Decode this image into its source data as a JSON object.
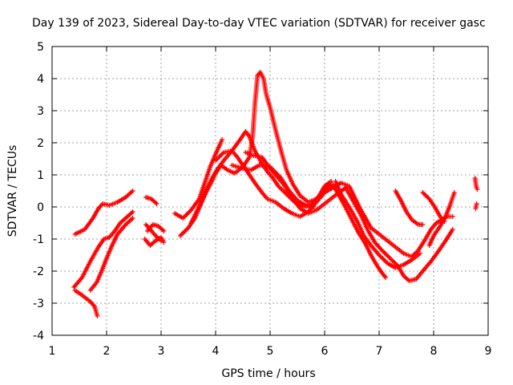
{
  "chart_data": {
    "type": "scatter",
    "title": "Day 139 of 2023, Sidereal Day-to-day VTEC variation (SDTVAR) for receiver gasc",
    "xlabel": "GPS time / hours",
    "ylabel": "SDTVAR / TECUs",
    "xlim": [
      1,
      9
    ],
    "ylim": [
      -4,
      5
    ],
    "xticks": [
      1,
      2,
      3,
      4,
      5,
      6,
      7,
      8,
      9
    ],
    "yticks": [
      -4,
      -3,
      -2,
      -1,
      0,
      1,
      2,
      3,
      4,
      5
    ],
    "grid": true,
    "marker": "+",
    "color": "#ff0000",
    "series": [
      {
        "tracks": [
          [
            [
              1.42,
              -0.85
            ],
            [
              1.6,
              -0.7
            ],
            [
              1.75,
              -0.35
            ],
            [
              1.85,
              -0.05
            ],
            [
              1.93,
              0.1
            ],
            [
              2.05,
              0.05
            ],
            [
              2.2,
              0.15
            ],
            [
              2.35,
              0.3
            ],
            [
              2.48,
              0.5
            ]
          ],
          [
            [
              1.42,
              -2.6
            ],
            [
              1.55,
              -2.75
            ],
            [
              1.7,
              -2.95
            ],
            [
              1.78,
              -3.1
            ],
            [
              1.83,
              -3.4
            ]
          ],
          [
            [
              1.4,
              -2.5
            ],
            [
              1.55,
              -2.2
            ],
            [
              1.7,
              -1.7
            ],
            [
              1.85,
              -1.25
            ],
            [
              1.95,
              -1.0
            ],
            [
              2.05,
              -0.95
            ],
            [
              2.15,
              -0.75
            ],
            [
              2.25,
              -0.5
            ],
            [
              2.35,
              -0.35
            ],
            [
              2.48,
              -0.15
            ]
          ],
          [
            [
              1.7,
              -2.6
            ],
            [
              1.82,
              -2.35
            ],
            [
              1.92,
              -1.95
            ],
            [
              2.0,
              -1.6
            ],
            [
              2.1,
              -1.2
            ],
            [
              2.2,
              -0.85
            ],
            [
              2.35,
              -0.55
            ],
            [
              2.48,
              -0.35
            ]
          ],
          [
            [
              2.72,
              0.3
            ],
            [
              2.82,
              0.25
            ],
            [
              2.92,
              0.1
            ]
          ],
          [
            [
              2.75,
              -0.75
            ],
            [
              2.85,
              -0.55
            ],
            [
              2.95,
              -0.6
            ],
            [
              3.05,
              -0.75
            ]
          ],
          [
            [
              2.7,
              -1.0
            ],
            [
              2.8,
              -1.2
            ],
            [
              2.9,
              -1.05
            ],
            [
              3.0,
              -0.95
            ],
            [
              3.05,
              -1.1
            ]
          ],
          [
            [
              2.72,
              -0.55
            ],
            [
              2.8,
              -0.7
            ],
            [
              2.9,
              -0.9
            ],
            [
              3.0,
              -1.05
            ]
          ],
          [
            [
              3.25,
              -0.2
            ],
            [
              3.4,
              -0.35
            ],
            [
              3.55,
              -0.1
            ],
            [
              3.7,
              0.25
            ],
            [
              3.8,
              0.75
            ],
            [
              3.9,
              1.25
            ],
            [
              4.0,
              1.65
            ],
            [
              4.08,
              1.95
            ],
            [
              4.12,
              2.1
            ]
          ],
          [
            [
              3.35,
              -0.9
            ],
            [
              3.5,
              -0.65
            ],
            [
              3.62,
              -0.35
            ],
            [
              3.72,
              0.05
            ],
            [
              3.82,
              0.5
            ],
            [
              3.92,
              0.85
            ],
            [
              4.02,
              1.15
            ],
            [
              4.15,
              1.45
            ],
            [
              4.3,
              1.75
            ],
            [
              4.45,
              2.1
            ],
            [
              4.55,
              2.35
            ],
            [
              4.62,
              2.2
            ],
            [
              4.72,
              1.75
            ],
            [
              4.85,
              1.35
            ],
            [
              4.95,
              1.1
            ],
            [
              5.05,
              0.9
            ],
            [
              5.15,
              0.65
            ],
            [
              5.3,
              0.4
            ],
            [
              5.45,
              0.15
            ],
            [
              5.6,
              0.0
            ],
            [
              5.75,
              0.05
            ],
            [
              5.9,
              0.35
            ],
            [
              6.0,
              0.65
            ],
            [
              6.12,
              0.8
            ]
          ],
          [
            [
              3.55,
              -0.5
            ],
            [
              3.65,
              -0.15
            ],
            [
              3.78,
              0.3
            ],
            [
              3.9,
              0.7
            ],
            [
              4.0,
              1.05
            ],
            [
              4.1,
              1.3
            ],
            [
              4.22,
              1.15
            ],
            [
              4.35,
              1.05
            ],
            [
              4.5,
              1.25
            ],
            [
              4.62,
              1.55
            ],
            [
              4.68,
              2.2
            ],
            [
              4.72,
              3.2
            ],
            [
              4.77,
              4.1
            ],
            [
              4.82,
              4.2
            ],
            [
              4.88,
              4.0
            ],
            [
              4.93,
              3.5
            ],
            [
              5.0,
              3.1
            ],
            [
              5.1,
              2.4
            ],
            [
              5.2,
              1.75
            ],
            [
              5.3,
              1.15
            ],
            [
              5.42,
              0.7
            ],
            [
              5.55,
              0.35
            ],
            [
              5.7,
              0.15
            ],
            [
              5.85,
              0.25
            ],
            [
              6.0,
              0.5
            ],
            [
              6.1,
              0.65
            ]
          ],
          [
            [
              4.0,
              1.45
            ],
            [
              4.15,
              1.7
            ],
            [
              4.3,
              1.75
            ],
            [
              4.4,
              1.55
            ],
            [
              4.5,
              1.3
            ],
            [
              4.6,
              1.05
            ],
            [
              4.72,
              0.75
            ],
            [
              4.85,
              0.45
            ],
            [
              4.95,
              0.25
            ],
            [
              5.1,
              0.15
            ],
            [
              5.25,
              -0.05
            ],
            [
              5.4,
              -0.2
            ],
            [
              5.55,
              -0.3
            ],
            [
              5.7,
              -0.15
            ],
            [
              5.85,
              0.15
            ],
            [
              6.0,
              0.45
            ],
            [
              6.15,
              0.6
            ],
            [
              6.3,
              0.75
            ]
          ],
          [
            [
              4.55,
              1.7
            ],
            [
              4.7,
              1.6
            ],
            [
              4.85,
              1.55
            ],
            [
              5.0,
              1.2
            ],
            [
              5.1,
              1.0
            ],
            [
              5.25,
              0.7
            ],
            [
              5.4,
              0.3
            ],
            [
              5.55,
              -0.05
            ],
            [
              5.7,
              -0.2
            ],
            [
              5.85,
              -0.1
            ],
            [
              6.0,
              0.1
            ],
            [
              6.15,
              0.3
            ],
            [
              6.3,
              0.5
            ],
            [
              6.4,
              0.6
            ]
          ],
          [
            [
              4.3,
              1.3
            ],
            [
              4.5,
              1.2
            ],
            [
              4.65,
              1.15
            ],
            [
              4.8,
              1.3
            ],
            [
              5.0,
              1.25
            ],
            [
              5.2,
              0.9
            ],
            [
              5.35,
              0.5
            ],
            [
              5.5,
              0.2
            ],
            [
              5.65,
              0.05
            ],
            [
              5.8,
              0.0
            ]
          ],
          [
            [
              6.0,
              0.6
            ],
            [
              6.15,
              0.7
            ],
            [
              6.25,
              0.4
            ],
            [
              6.38,
              0.0
            ],
            [
              6.5,
              -0.4
            ],
            [
              6.62,
              -0.8
            ],
            [
              6.75,
              -1.15
            ],
            [
              6.85,
              -1.5
            ],
            [
              6.95,
              -1.8
            ],
            [
              7.05,
              -2.05
            ],
            [
              7.12,
              -2.2
            ]
          ],
          [
            [
              6.2,
              0.8
            ],
            [
              6.3,
              0.4
            ],
            [
              6.45,
              0.0
            ],
            [
              6.6,
              -0.45
            ],
            [
              6.72,
              -0.9
            ],
            [
              6.85,
              -1.2
            ],
            [
              7.0,
              -1.5
            ],
            [
              7.15,
              -1.75
            ],
            [
              7.3,
              -1.9
            ],
            [
              7.45,
              -1.8
            ],
            [
              7.6,
              -1.65
            ],
            [
              7.75,
              -1.45
            ]
          ],
          [
            [
              6.3,
              0.75
            ],
            [
              6.45,
              0.65
            ],
            [
              6.55,
              0.3
            ],
            [
              6.65,
              -0.05
            ],
            [
              6.75,
              -0.35
            ],
            [
              6.85,
              -0.65
            ],
            [
              7.0,
              -0.85
            ],
            [
              7.15,
              -1.05
            ],
            [
              7.3,
              -1.25
            ],
            [
              7.45,
              -1.45
            ],
            [
              7.6,
              -1.55
            ],
            [
              7.72,
              -1.35
            ],
            [
              7.85,
              -1.0
            ],
            [
              7.95,
              -0.7
            ],
            [
              8.05,
              -0.5
            ],
            [
              8.15,
              -0.4
            ],
            [
              8.25,
              -0.3
            ],
            [
              8.35,
              -0.3
            ]
          ],
          [
            [
              6.4,
              0.55
            ],
            [
              6.55,
              0.1
            ],
            [
              6.68,
              -0.3
            ],
            [
              6.8,
              -0.75
            ],
            [
              6.92,
              -1.1
            ],
            [
              7.05,
              -1.35
            ],
            [
              7.2,
              -1.6
            ],
            [
              7.35,
              -1.85
            ],
            [
              7.45,
              -2.15
            ],
            [
              7.55,
              -2.3
            ],
            [
              7.68,
              -2.25
            ],
            [
              7.8,
              -2.0
            ],
            [
              7.95,
              -1.7
            ],
            [
              8.1,
              -1.35
            ],
            [
              8.22,
              -1.05
            ],
            [
              8.35,
              -0.7
            ]
          ],
          [
            [
              7.3,
              0.5
            ],
            [
              7.4,
              0.2
            ],
            [
              7.5,
              -0.15
            ],
            [
              7.6,
              -0.4
            ],
            [
              7.72,
              -0.55
            ],
            [
              7.8,
              -0.55
            ]
          ],
          [
            [
              7.8,
              0.45
            ],
            [
              7.92,
              0.25
            ],
            [
              8.02,
              0.0
            ],
            [
              8.12,
              -0.3
            ],
            [
              8.2,
              -0.45
            ]
          ],
          [
            [
              7.92,
              -1.2
            ],
            [
              8.0,
              -0.9
            ],
            [
              8.12,
              -0.6
            ],
            [
              8.22,
              -0.3
            ],
            [
              8.3,
              0.05
            ],
            [
              8.38,
              0.45
            ]
          ],
          [
            [
              8.76,
              0.9
            ],
            [
              8.78,
              0.65
            ],
            [
              8.8,
              0.55
            ]
          ],
          [
            [
              8.77,
              -0.05
            ],
            [
              8.79,
              0.1
            ]
          ]
        ]
      }
    ]
  }
}
